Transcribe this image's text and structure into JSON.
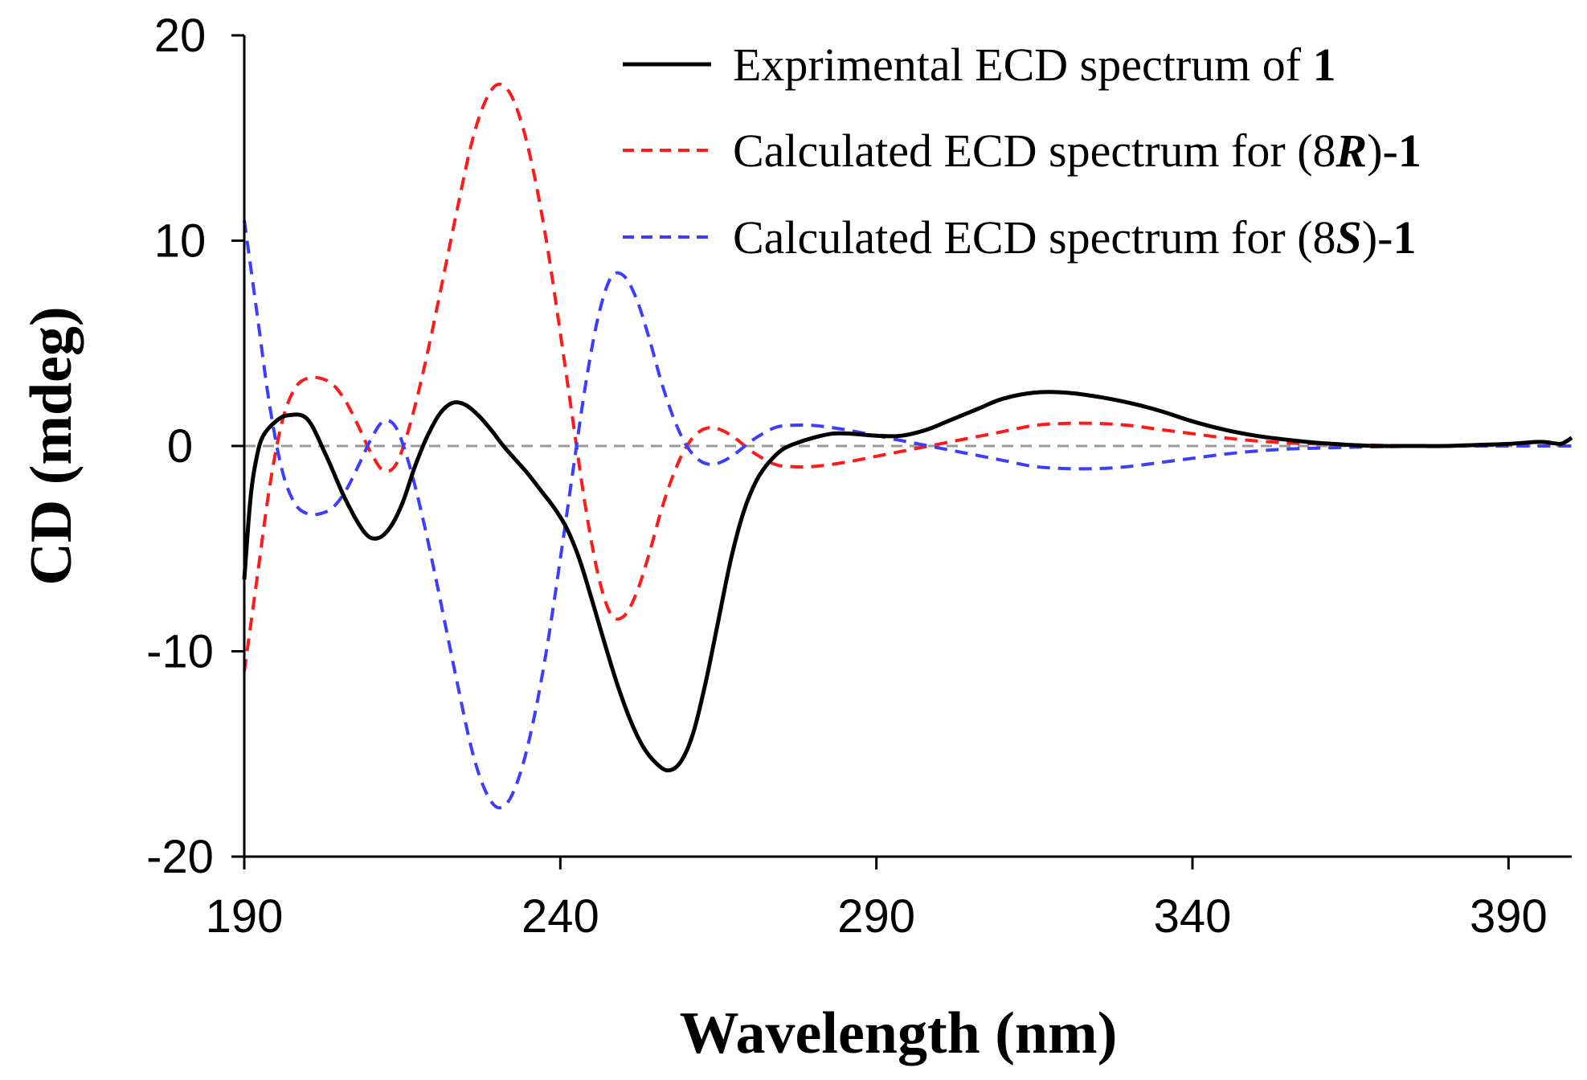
{
  "chart_data": {
    "type": "line",
    "title": "",
    "xlabel": "Wavelength (nm)",
    "ylabel": "CD (mdeg)",
    "xlim": [
      190,
      400
    ],
    "ylim": [
      -20,
      20
    ],
    "xticks": [
      "190",
      "240",
      "290",
      "340",
      "390"
    ],
    "yticks": [
      "20",
      "10",
      "0",
      "-10",
      "-20"
    ],
    "zero_line": {
      "y": 0,
      "color": "#999999",
      "style": "dashed"
    },
    "legend_position": "top-right",
    "series": [
      {
        "name": "Exprimental ECD spectrum of 1",
        "legend": {
          "pre": "Exprimental ECD spectrum of ",
          "em": "1",
          "post": ""
        },
        "color": "#000000",
        "style": "solid",
        "x": [
          190,
          191,
          192,
          193,
          195,
          197,
          200,
          203,
          206,
          209,
          211,
          213,
          215,
          217,
          219,
          221,
          223,
          225,
          227,
          229,
          231,
          233,
          235,
          237,
          239,
          241,
          243,
          245,
          247,
          249,
          251,
          253,
          255,
          257,
          259,
          261,
          263,
          265,
          267,
          269,
          271,
          273,
          275,
          277,
          280,
          283,
          286,
          290,
          294,
          298,
          302,
          306,
          310,
          315,
          320,
          325,
          330,
          335,
          340,
          345,
          350,
          355,
          360,
          365,
          370,
          375,
          380,
          385,
          390,
          395,
          398,
          399,
          400
        ],
        "y": [
          -6.5,
          -2.5,
          -0.5,
          0.5,
          1.2,
          1.5,
          1.3,
          -0.5,
          -2.6,
          -4.2,
          -4.5,
          -4.0,
          -2.8,
          -1.0,
          0.5,
          1.6,
          2.1,
          2.0,
          1.5,
          0.8,
          0.0,
          -0.7,
          -1.4,
          -2.2,
          -3.0,
          -4.0,
          -5.5,
          -7.5,
          -9.6,
          -11.6,
          -13.3,
          -14.6,
          -15.4,
          -15.8,
          -15.4,
          -14.0,
          -11.5,
          -8.5,
          -5.5,
          -3.2,
          -1.7,
          -0.8,
          -0.2,
          0.1,
          0.4,
          0.6,
          0.6,
          0.5,
          0.5,
          0.8,
          1.3,
          1.8,
          2.3,
          2.6,
          2.6,
          2.4,
          2.1,
          1.7,
          1.2,
          0.8,
          0.5,
          0.3,
          0.15,
          0.05,
          0.0,
          0.0,
          0.0,
          0.05,
          0.1,
          0.2,
          0.1,
          0.2,
          0.4
        ]
      },
      {
        "name": "Calculated ECD spectrum for (8R)-1",
        "legend": {
          "pre": "Calculated ECD spectrum for (8",
          "it": "R",
          "mid": ")-",
          "em": "1"
        },
        "color": "#ff1a1a",
        "style": "dashed",
        "x": [
          190,
          192,
          194,
          196,
          198,
          200,
          202,
          204,
          206,
          208,
          210,
          212,
          214,
          216,
          218,
          220,
          222,
          224,
          226,
          228,
          230,
          232,
          234,
          236,
          238,
          240,
          242,
          244,
          246,
          248,
          250,
          252,
          254,
          256,
          258,
          260,
          262,
          264,
          266,
          268,
          270,
          272,
          274,
          276,
          280,
          285,
          290,
          295,
          300,
          305,
          310,
          315,
          320,
          325,
          330,
          335,
          340,
          345,
          350,
          355,
          360,
          370,
          380,
          390,
          400
        ],
        "y": [
          -11.0,
          -6.5,
          -2.0,
          1.2,
          2.8,
          3.3,
          3.3,
          3.0,
          2.2,
          1.0,
          -0.3,
          -1.2,
          -0.9,
          0.8,
          3.2,
          6.0,
          9.0,
          12.0,
          14.8,
          16.7,
          17.6,
          17.2,
          15.6,
          13.0,
          9.6,
          5.5,
          1.2,
          -3.0,
          -6.3,
          -8.2,
          -8.3,
          -7.2,
          -5.3,
          -3.1,
          -1.3,
          0.0,
          0.7,
          0.9,
          0.7,
          0.3,
          -0.2,
          -0.6,
          -0.9,
          -1.0,
          -1.0,
          -0.8,
          -0.5,
          -0.2,
          0.1,
          0.4,
          0.7,
          1.0,
          1.1,
          1.1,
          1.0,
          0.8,
          0.6,
          0.4,
          0.25,
          0.15,
          0.1,
          0.03,
          0.0,
          0.0,
          0.0
        ]
      },
      {
        "name": "Calculated ECD spectrum for (8S)-1",
        "legend": {
          "pre": "Calculated ECD spectrum for (8",
          "it": "S",
          "mid": ")-",
          "em": "1"
        },
        "color": "#3d3dff",
        "style": "dashed",
        "x": [
          190,
          192,
          194,
          196,
          198,
          200,
          202,
          204,
          206,
          208,
          210,
          212,
          214,
          216,
          218,
          220,
          222,
          224,
          226,
          228,
          230,
          232,
          234,
          236,
          238,
          240,
          242,
          244,
          246,
          248,
          250,
          252,
          254,
          256,
          258,
          260,
          262,
          264,
          266,
          268,
          270,
          272,
          274,
          276,
          280,
          285,
          290,
          295,
          300,
          305,
          310,
          315,
          320,
          325,
          330,
          335,
          340,
          345,
          350,
          355,
          360,
          370,
          380,
          390,
          400
        ],
        "y": [
          11.0,
          6.5,
          2.0,
          -1.2,
          -2.8,
          -3.3,
          -3.3,
          -3.0,
          -2.2,
          -1.0,
          0.3,
          1.2,
          0.9,
          -0.8,
          -3.2,
          -6.0,
          -9.0,
          -12.0,
          -14.8,
          -16.7,
          -17.6,
          -17.2,
          -15.6,
          -13.0,
          -9.6,
          -5.5,
          -1.2,
          3.0,
          6.3,
          8.2,
          8.3,
          7.2,
          5.3,
          3.1,
          1.3,
          0.0,
          -0.7,
          -0.9,
          -0.7,
          -0.3,
          0.2,
          0.6,
          0.9,
          1.0,
          1.0,
          0.8,
          0.5,
          0.2,
          -0.1,
          -0.4,
          -0.7,
          -1.0,
          -1.1,
          -1.1,
          -1.0,
          -0.8,
          -0.6,
          -0.4,
          -0.25,
          -0.15,
          -0.1,
          -0.03,
          0.0,
          0.0,
          0.0
        ]
      }
    ]
  }
}
